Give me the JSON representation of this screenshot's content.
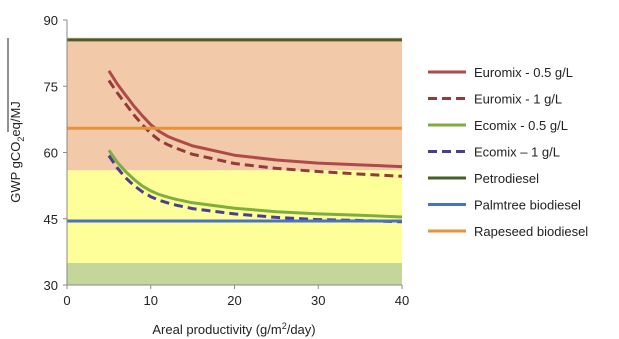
{
  "chart_data": {
    "type": "line",
    "xlabel": "Areal productivity (g/m²/day)",
    "xlabel_parts": {
      "before": "Areal productivity (g/m",
      "sup": "2",
      "after": "/day)"
    },
    "ylabel": "GWP gCO₂eq/MJ",
    "ylabel_parts": {
      "before": "GWP gCO",
      "sub": "2",
      "after": "eq/MJ"
    },
    "xlim": [
      0,
      40
    ],
    "ylim": [
      30,
      90
    ],
    "xticks": [
      0,
      10,
      20,
      30,
      40
    ],
    "yticks": [
      30,
      45,
      60,
      75,
      90
    ],
    "xtick_labels": [
      "0",
      "10",
      "20",
      "30",
      "40"
    ],
    "ytick_labels": [
      "30",
      "45",
      "60",
      "75",
      "90"
    ],
    "grid": false,
    "legend_position": "right",
    "bands": [
      {
        "y0": 30,
        "y1": 35,
        "color": "#c5d69b"
      },
      {
        "y0": 35,
        "y1": 56,
        "color": "#ffff99"
      },
      {
        "y0": 56,
        "y1": 86,
        "color": "#f2c9a9"
      }
    ],
    "series": [
      {
        "name": "Euromix - 0.5 g/L",
        "color": "#b04a4a",
        "dash": "solid",
        "x": [
          5,
          6,
          7,
          8,
          9,
          10,
          11,
          12,
          13,
          15,
          20,
          25,
          30,
          35,
          40
        ],
        "y": [
          78.5,
          75.5,
          73.0,
          70.5,
          68.3,
          66.3,
          64.8,
          63.7,
          62.9,
          61.5,
          59.4,
          58.3,
          57.6,
          57.2,
          56.8
        ]
      },
      {
        "name": "Euromix - 1 g/L",
        "color": "#933a3a",
        "dash": "dashed",
        "x": [
          5,
          6,
          7,
          8,
          9,
          10,
          11,
          12,
          13,
          15,
          20,
          25,
          30,
          35,
          40
        ],
        "y": [
          76.3,
          73.5,
          71.0,
          68.5,
          66.3,
          64.3,
          62.8,
          61.8,
          61.0,
          59.6,
          57.5,
          56.4,
          55.7,
          55.1,
          54.6
        ]
      },
      {
        "name": "Ecomix - 0.5 g/L",
        "color": "#7fae3e",
        "dash": "solid",
        "x": [
          5,
          6,
          7,
          8,
          9,
          10,
          11,
          12,
          13,
          15,
          20,
          25,
          30,
          35,
          40
        ],
        "y": [
          60.5,
          57.8,
          55.7,
          53.9,
          52.4,
          51.3,
          50.5,
          49.9,
          49.4,
          48.6,
          47.4,
          46.6,
          46.1,
          45.8,
          45.4
        ]
      },
      {
        "name": "Ecomix – 1 g/L",
        "color": "#4a3f8f",
        "dash": "dashed",
        "x": [
          5,
          6,
          7,
          8,
          9,
          10,
          11,
          12,
          13,
          15,
          20,
          25,
          30,
          35,
          40
        ],
        "y": [
          59.3,
          56.5,
          54.3,
          52.5,
          51.1,
          50.0,
          49.2,
          48.6,
          48.1,
          47.3,
          46.1,
          45.3,
          44.8,
          44.6,
          44.3
        ]
      },
      {
        "name": "Petrodiesel",
        "color": "#4a5e2a",
        "dash": "solid",
        "constant": 85.5
      },
      {
        "name": "Palmtree biodiesel",
        "color": "#4a72c4",
        "dash": "solid",
        "constant": 44.5
      },
      {
        "name": "Rapeseed biodiesel",
        "color": "#e8923a",
        "dash": "solid",
        "constant": 65.5
      }
    ]
  }
}
